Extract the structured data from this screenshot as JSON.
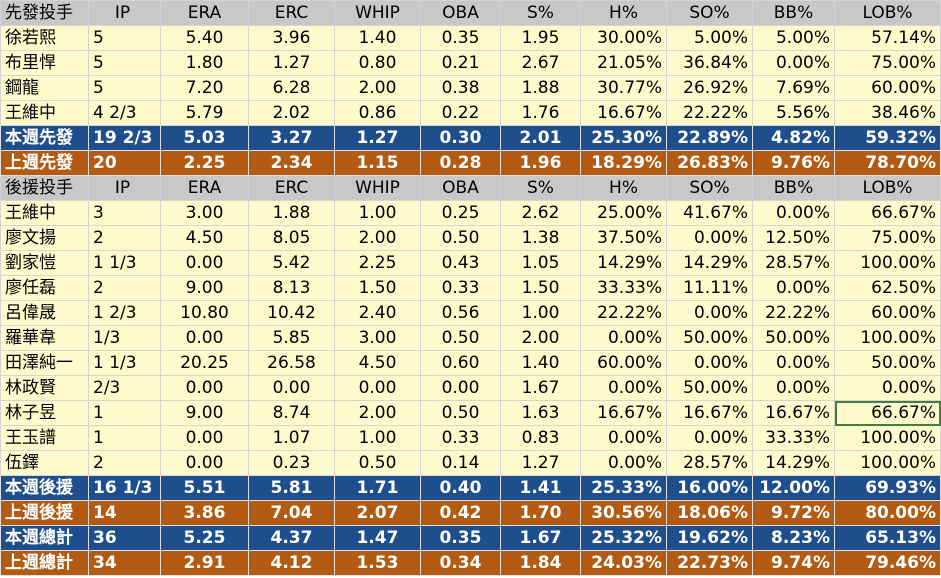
{
  "columns": [
    "IP",
    "ERA",
    "ERC",
    "WHIP",
    "OBA",
    "S%",
    "H%",
    "SO%",
    "BB%",
    "LOB%"
  ],
  "starters_header": "先發投手",
  "relievers_header": "後援投手",
  "starters": [
    {
      "name": "徐若熙",
      "ip": "5",
      "era": "5.40",
      "erc": "3.96",
      "whip": "1.40",
      "oba": "0.35",
      "s": "1.95",
      "h": "30.00%",
      "so": "5.00%",
      "bb": "5.00%",
      "lob": "57.14%"
    },
    {
      "name": "布里悍",
      "ip": "5",
      "era": "1.80",
      "erc": "1.27",
      "whip": "0.80",
      "oba": "0.21",
      "s": "2.67",
      "h": "21.05%",
      "so": "36.84%",
      "bb": "0.00%",
      "lob": "75.00%"
    },
    {
      "name": "鋼龍",
      "ip": "5",
      "era": "7.20",
      "erc": "6.28",
      "whip": "2.00",
      "oba": "0.38",
      "s": "1.88",
      "h": "30.77%",
      "so": "26.92%",
      "bb": "7.69%",
      "lob": "60.00%"
    },
    {
      "name": "王維中",
      "ip": "4 2/3",
      "era": "5.79",
      "erc": "2.02",
      "whip": "0.86",
      "oba": "0.22",
      "s": "1.76",
      "h": "16.67%",
      "so": "22.22%",
      "bb": "5.56%",
      "lob": "38.46%"
    }
  ],
  "starters_this_week": {
    "name": "本週先發",
    "ip": "19 2/3",
    "era": "5.03",
    "erc": "3.27",
    "whip": "1.27",
    "oba": "0.30",
    "s": "2.01",
    "h": "25.30%",
    "so": "22.89%",
    "bb": "4.82%",
    "lob": "59.32%"
  },
  "starters_last_week": {
    "name": "上週先發",
    "ip": "20",
    "era": "2.25",
    "erc": "2.34",
    "whip": "1.15",
    "oba": "0.28",
    "s": "1.96",
    "h": "18.29%",
    "so": "26.83%",
    "bb": "9.76%",
    "lob": "78.70%"
  },
  "relievers": [
    {
      "name": "王維中",
      "ip": "3",
      "era": "3.00",
      "erc": "1.88",
      "whip": "1.00",
      "oba": "0.25",
      "s": "2.62",
      "h": "25.00%",
      "so": "41.67%",
      "bb": "0.00%",
      "lob": "66.67%"
    },
    {
      "name": "廖文揚",
      "ip": "2",
      "era": "4.50",
      "erc": "8.05",
      "whip": "2.00",
      "oba": "0.50",
      "s": "1.38",
      "h": "37.50%",
      "so": "0.00%",
      "bb": "12.50%",
      "lob": "75.00%"
    },
    {
      "name": "劉家愷",
      "ip": "1 1/3",
      "era": "0.00",
      "erc": "5.42",
      "whip": "2.25",
      "oba": "0.43",
      "s": "1.05",
      "h": "14.29%",
      "so": "14.29%",
      "bb": "28.57%",
      "lob": "100.00%"
    },
    {
      "name": "廖任磊",
      "ip": "2",
      "era": "9.00",
      "erc": "8.13",
      "whip": "1.50",
      "oba": "0.33",
      "s": "1.50",
      "h": "33.33%",
      "so": "11.11%",
      "bb": "0.00%",
      "lob": "62.50%"
    },
    {
      "name": "呂偉晟",
      "ip": "1 2/3",
      "era": "10.80",
      "erc": "10.42",
      "whip": "2.40",
      "oba": "0.56",
      "s": "1.00",
      "h": "22.22%",
      "so": "0.00%",
      "bb": "22.22%",
      "lob": "60.00%"
    },
    {
      "name": "羅華韋",
      "ip": "1/3",
      "era": "0.00",
      "erc": "5.85",
      "whip": "3.00",
      "oba": "0.50",
      "s": "2.00",
      "h": "0.00%",
      "so": "50.00%",
      "bb": "50.00%",
      "lob": "100.00%"
    },
    {
      "name": "田澤純一",
      "ip": "1 1/3",
      "era": "20.25",
      "erc": "26.58",
      "whip": "4.50",
      "oba": "0.60",
      "s": "1.40",
      "h": "60.00%",
      "so": "0.00%",
      "bb": "0.00%",
      "lob": "50.00%"
    },
    {
      "name": "林政賢",
      "ip": "2/3",
      "era": "0.00",
      "erc": "0.00",
      "whip": "0.00",
      "oba": "0.00",
      "s": "1.67",
      "h": "0.00%",
      "so": "50.00%",
      "bb": "0.00%",
      "lob": "0.00%"
    },
    {
      "name": "林子昱",
      "ip": "1",
      "era": "9.00",
      "erc": "8.74",
      "whip": "2.00",
      "oba": "0.50",
      "s": "1.63",
      "h": "16.67%",
      "so": "16.67%",
      "bb": "16.67%",
      "lob": "66.67%"
    },
    {
      "name": "王玉譜",
      "ip": "1",
      "era": "0.00",
      "erc": "1.07",
      "whip": "1.00",
      "oba": "0.33",
      "s": "0.83",
      "h": "0.00%",
      "so": "0.00%",
      "bb": "33.33%",
      "lob": "100.00%"
    },
    {
      "name": "伍鐸",
      "ip": "2",
      "era": "0.00",
      "erc": "0.23",
      "whip": "0.50",
      "oba": "0.14",
      "s": "1.27",
      "h": "0.00%",
      "so": "28.57%",
      "bb": "14.29%",
      "lob": "100.00%"
    }
  ],
  "relievers_this_week": {
    "name": "本週後援",
    "ip": "16 1/3",
    "era": "5.51",
    "erc": "5.81",
    "whip": "1.71",
    "oba": "0.40",
    "s": "1.41",
    "h": "25.33%",
    "so": "16.00%",
    "bb": "12.00%",
    "lob": "69.93%"
  },
  "relievers_last_week": {
    "name": "上週後援",
    "ip": "14",
    "era": "3.86",
    "erc": "7.04",
    "whip": "2.07",
    "oba": "0.42",
    "s": "1.70",
    "h": "30.56%",
    "so": "18.06%",
    "bb": "9.72%",
    "lob": "80.00%"
  },
  "total_this_week": {
    "name": "本週總計",
    "ip": "36",
    "era": "5.25",
    "erc": "4.37",
    "whip": "1.47",
    "oba": "0.35",
    "s": "1.67",
    "h": "25.32%",
    "so": "19.62%",
    "bb": "8.23%",
    "lob": "65.13%"
  },
  "total_last_week": {
    "name": "上週總計",
    "ip": "34",
    "era": "2.91",
    "erc": "4.12",
    "whip": "1.53",
    "oba": "0.34",
    "s": "1.84",
    "h": "24.03%",
    "so": "22.73%",
    "bb": "9.74%",
    "lob": "79.46%"
  },
  "colors": {
    "data_row": "#fff9cc",
    "header_row": "#c8c8c8",
    "this_week": "#1f4e8c",
    "last_week": "#b35b12"
  }
}
